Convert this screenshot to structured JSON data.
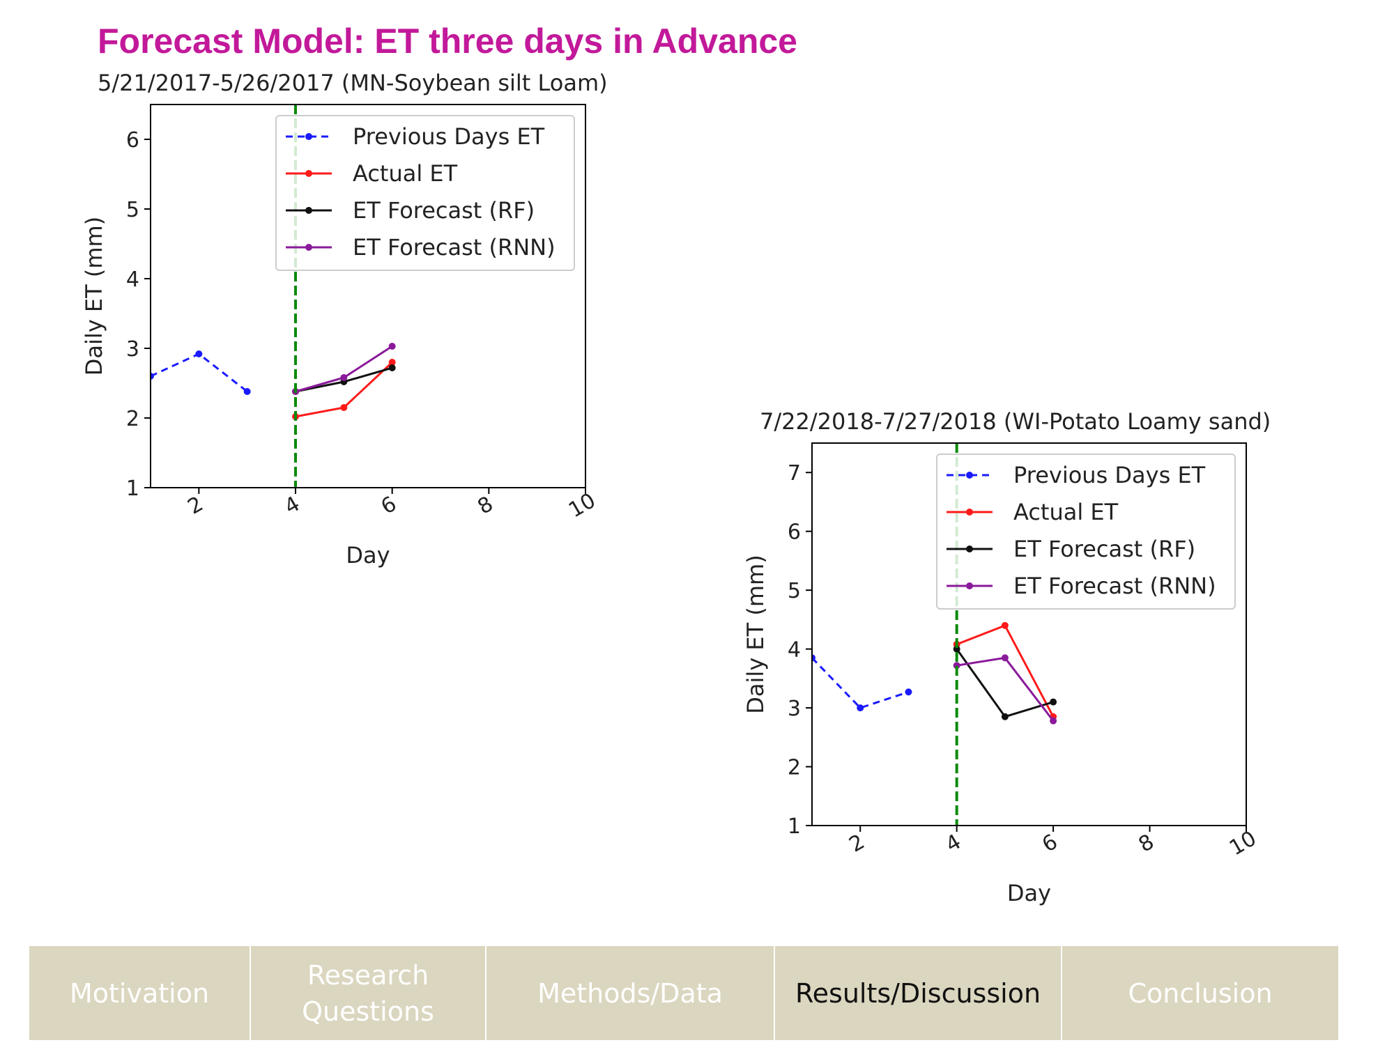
{
  "page": {
    "title": "Forecast Model: ET three days in Advance"
  },
  "colors": {
    "title": "#c2199a",
    "previous": "#1a1aff",
    "actual": "#ff1a1a",
    "rf": "#111111",
    "rnn": "#8a1a9a",
    "vline": "#0a8a0a",
    "nav_bg": "#dbd6bf"
  },
  "chart_data": [
    {
      "type": "line",
      "title": "5/21/2017-5/26/2017 (MN-Soybean silt Loam)",
      "xlabel": "Day",
      "ylabel": "Daily ET (mm)",
      "xlim": [
        1,
        10
      ],
      "ylim": [
        1,
        6.5
      ],
      "xticks": [
        "2",
        "4",
        "6",
        "8",
        "10"
      ],
      "yticks": [
        "1",
        "2",
        "3",
        "4",
        "5",
        "6"
      ],
      "vline_x": 4,
      "legend_position": "upper-center",
      "series": [
        {
          "name": "Previous Days ET",
          "style": "dashed",
          "x": [
            1,
            2,
            3
          ],
          "y": [
            2.6,
            2.92,
            2.38
          ]
        },
        {
          "name": "Actual ET",
          "style": "solid",
          "x": [
            4,
            5,
            6
          ],
          "y": [
            2.02,
            2.15,
            2.8
          ]
        },
        {
          "name": "ET Forecast (RF)",
          "style": "solid",
          "x": [
            4,
            5,
            6
          ],
          "y": [
            2.38,
            2.52,
            2.72
          ]
        },
        {
          "name": "ET Forecast (RNN)",
          "style": "solid",
          "x": [
            4,
            5,
            6
          ],
          "y": [
            2.38,
            2.58,
            3.03
          ]
        }
      ]
    },
    {
      "type": "line",
      "title": "7/22/2018-7/27/2018 (WI-Potato Loamy sand)",
      "xlabel": "Day",
      "ylabel": "Daily ET (mm)",
      "xlim": [
        1,
        10
      ],
      "ylim": [
        1,
        7.5
      ],
      "xticks": [
        "2",
        "4",
        "6",
        "8",
        "10"
      ],
      "yticks": [
        "1",
        "2",
        "3",
        "4",
        "5",
        "6",
        "7"
      ],
      "vline_x": 4,
      "legend_position": "upper-right",
      "series": [
        {
          "name": "Previous Days ET",
          "style": "dashed",
          "x": [
            1,
            2,
            3
          ],
          "y": [
            3.85,
            3.0,
            3.27
          ]
        },
        {
          "name": "Actual ET",
          "style": "solid",
          "x": [
            4,
            5,
            6
          ],
          "y": [
            4.08,
            4.4,
            2.85
          ]
        },
        {
          "name": "ET Forecast (RF)",
          "style": "solid",
          "x": [
            4,
            5,
            6
          ],
          "y": [
            4.0,
            2.85,
            3.1
          ]
        },
        {
          "name": "ET Forecast (RNN)",
          "style": "solid",
          "x": [
            4,
            5,
            6
          ],
          "y": [
            3.72,
            3.85,
            2.78
          ]
        }
      ]
    }
  ],
  "nav": {
    "tabs": [
      {
        "label": "Motivation",
        "active": false
      },
      {
        "label": "Research Questions",
        "active": false
      },
      {
        "label": "Methods/Data",
        "active": false
      },
      {
        "label": "Results/Discussion",
        "active": true
      },
      {
        "label": "Conclusion",
        "active": false
      }
    ]
  }
}
